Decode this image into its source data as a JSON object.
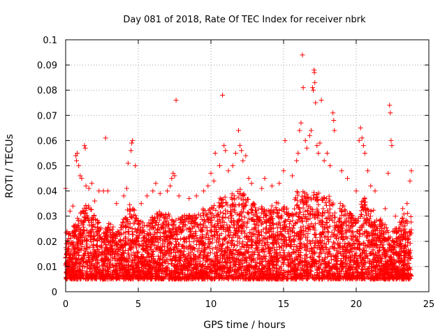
{
  "chart_data": {
    "type": "scatter",
    "title": "Day 081 of 2018, Rate Of TEC Index for receiver nbrk",
    "xlabel": "GPS time / hours",
    "ylabel": "ROTI / TECUs",
    "xlim": [
      0,
      25
    ],
    "ylim": [
      0,
      0.1
    ],
    "xticks": [
      0,
      5,
      10,
      15,
      20,
      25
    ],
    "xtick_labels": [
      "0",
      "5",
      "10",
      "15",
      "20",
      "25"
    ],
    "yticks": [
      0,
      0.01,
      0.02,
      0.03,
      0.04,
      0.05,
      0.06,
      0.07,
      0.08,
      0.09,
      0.1
    ],
    "ytick_labels": [
      "0",
      "0.01",
      "0.02",
      "0.03",
      "0.04",
      "0.05",
      "0.06",
      "0.07",
      "0.08",
      "0.09",
      "0.1"
    ],
    "grid": true,
    "marker": "+",
    "color": "#ff0000",
    "series": [
      {
        "name": "ROTI",
        "points": [
          [
            0.0,
            0.041
          ],
          [
            0.3,
            0.032
          ],
          [
            0.5,
            0.034
          ],
          [
            0.7,
            0.054
          ],
          [
            0.75,
            0.052
          ],
          [
            0.8,
            0.055
          ],
          [
            0.9,
            0.05
          ],
          [
            1.0,
            0.046
          ],
          [
            1.1,
            0.045
          ],
          [
            1.3,
            0.058
          ],
          [
            1.35,
            0.057
          ],
          [
            1.4,
            0.042
          ],
          [
            1.6,
            0.041
          ],
          [
            1.8,
            0.043
          ],
          [
            2.0,
            0.036
          ],
          [
            2.3,
            0.04
          ],
          [
            2.6,
            0.04
          ],
          [
            2.75,
            0.061
          ],
          [
            2.9,
            0.04
          ],
          [
            3.5,
            0.035
          ],
          [
            4.0,
            0.038
          ],
          [
            4.2,
            0.041
          ],
          [
            4.3,
            0.051
          ],
          [
            4.5,
            0.056
          ],
          [
            4.55,
            0.059
          ],
          [
            4.6,
            0.06
          ],
          [
            4.8,
            0.05
          ],
          [
            5.2,
            0.035
          ],
          [
            5.6,
            0.038
          ],
          [
            6.0,
            0.04
          ],
          [
            6.2,
            0.043
          ],
          [
            6.5,
            0.039
          ],
          [
            7.0,
            0.04
          ],
          [
            7.2,
            0.042
          ],
          [
            7.3,
            0.045
          ],
          [
            7.4,
            0.047
          ],
          [
            7.5,
            0.046
          ],
          [
            7.6,
            0.076
          ],
          [
            7.8,
            0.038
          ],
          [
            8.5,
            0.037
          ],
          [
            9.0,
            0.038
          ],
          [
            9.5,
            0.04
          ],
          [
            9.8,
            0.042
          ],
          [
            10.0,
            0.047
          ],
          [
            10.2,
            0.044
          ],
          [
            10.3,
            0.055
          ],
          [
            10.6,
            0.05
          ],
          [
            10.8,
            0.078
          ],
          [
            10.9,
            0.058
          ],
          [
            11.0,
            0.056
          ],
          [
            11.2,
            0.048
          ],
          [
            11.5,
            0.05
          ],
          [
            11.7,
            0.055
          ],
          [
            11.9,
            0.064
          ],
          [
            12.0,
            0.058
          ],
          [
            12.1,
            0.056
          ],
          [
            12.2,
            0.052
          ],
          [
            12.4,
            0.054
          ],
          [
            12.6,
            0.045
          ],
          [
            12.8,
            0.043
          ],
          [
            13.5,
            0.041
          ],
          [
            13.7,
            0.045
          ],
          [
            14.2,
            0.042
          ],
          [
            14.7,
            0.043
          ],
          [
            15.0,
            0.048
          ],
          [
            15.1,
            0.06
          ],
          [
            15.6,
            0.046
          ],
          [
            15.9,
            0.052
          ],
          [
            16.0,
            0.055
          ],
          [
            16.1,
            0.064
          ],
          [
            16.2,
            0.067
          ],
          [
            16.3,
            0.094
          ],
          [
            16.35,
            0.081
          ],
          [
            16.5,
            0.06
          ],
          [
            16.6,
            0.057
          ],
          [
            16.8,
            0.062
          ],
          [
            16.9,
            0.064
          ],
          [
            17.0,
            0.081
          ],
          [
            17.05,
            0.08
          ],
          [
            17.1,
            0.088
          ],
          [
            17.12,
            0.087
          ],
          [
            17.15,
            0.083
          ],
          [
            17.2,
            0.075
          ],
          [
            17.3,
            0.058
          ],
          [
            17.4,
            0.055
          ],
          [
            17.5,
            0.059
          ],
          [
            17.6,
            0.076
          ],
          [
            17.8,
            0.052
          ],
          [
            18.0,
            0.055
          ],
          [
            18.2,
            0.05
          ],
          [
            18.4,
            0.071
          ],
          [
            18.45,
            0.068
          ],
          [
            18.5,
            0.064
          ],
          [
            19.0,
            0.048
          ],
          [
            19.4,
            0.045
          ],
          [
            20.0,
            0.04
          ],
          [
            20.2,
            0.06
          ],
          [
            20.3,
            0.065
          ],
          [
            20.4,
            0.061
          ],
          [
            20.5,
            0.058
          ],
          [
            20.6,
            0.055
          ],
          [
            20.8,
            0.048
          ],
          [
            21.0,
            0.042
          ],
          [
            21.3,
            0.04
          ],
          [
            22.0,
            0.033
          ],
          [
            22.2,
            0.047
          ],
          [
            22.3,
            0.074
          ],
          [
            22.35,
            0.071
          ],
          [
            22.4,
            0.06
          ],
          [
            22.45,
            0.058
          ],
          [
            22.7,
            0.03
          ],
          [
            23.2,
            0.033
          ],
          [
            23.5,
            0.035
          ],
          [
            23.7,
            0.044
          ],
          [
            23.8,
            0.048
          ]
        ],
        "band_envelope": [
          [
            0.0,
            0.024
          ],
          [
            0.5,
            0.026
          ],
          [
            1.0,
            0.031
          ],
          [
            1.5,
            0.036
          ],
          [
            2.0,
            0.032
          ],
          [
            2.5,
            0.025
          ],
          [
            3.0,
            0.028
          ],
          [
            3.5,
            0.024
          ],
          [
            4.0,
            0.029
          ],
          [
            4.5,
            0.036
          ],
          [
            5.0,
            0.029
          ],
          [
            5.5,
            0.027
          ],
          [
            6.0,
            0.03
          ],
          [
            6.5,
            0.032
          ],
          [
            7.0,
            0.031
          ],
          [
            7.5,
            0.03
          ],
          [
            8.0,
            0.03
          ],
          [
            8.5,
            0.031
          ],
          [
            9.0,
            0.032
          ],
          [
            9.5,
            0.033
          ],
          [
            10.0,
            0.034
          ],
          [
            10.5,
            0.037
          ],
          [
            11.0,
            0.038
          ],
          [
            11.5,
            0.039
          ],
          [
            12.0,
            0.041
          ],
          [
            12.5,
            0.037
          ],
          [
            13.0,
            0.035
          ],
          [
            13.5,
            0.034
          ],
          [
            14.0,
            0.033
          ],
          [
            14.5,
            0.036
          ],
          [
            15.0,
            0.034
          ],
          [
            15.5,
            0.033
          ],
          [
            16.0,
            0.041
          ],
          [
            16.5,
            0.04
          ],
          [
            17.0,
            0.04
          ],
          [
            17.5,
            0.039
          ],
          [
            18.0,
            0.039
          ],
          [
            18.5,
            0.036
          ],
          [
            19.0,
            0.035
          ],
          [
            19.5,
            0.032
          ],
          [
            20.0,
            0.029
          ],
          [
            20.5,
            0.038
          ],
          [
            21.0,
            0.034
          ],
          [
            21.5,
            0.03
          ],
          [
            22.0,
            0.027
          ],
          [
            22.5,
            0.024
          ],
          [
            23.0,
            0.028
          ],
          [
            23.5,
            0.033
          ],
          [
            23.8,
            0.03
          ]
        ],
        "band_floor": 0.005,
        "band_x_range": [
          0.0,
          23.8
        ]
      }
    ]
  }
}
